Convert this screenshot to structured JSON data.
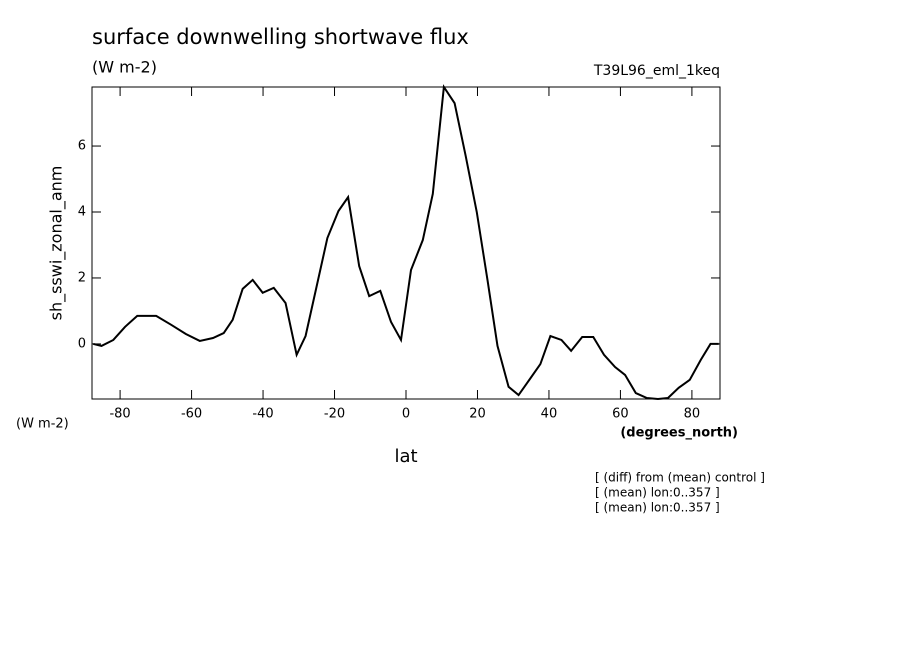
{
  "chart_data": {
    "type": "line",
    "title": "surface downwelling shortwave flux",
    "subtitle": "(W m-2)",
    "dataset": "T39L96_eml_1keq",
    "ylabel": "sh_sswi_zonal_anm",
    "yunits": "(W m-2)",
    "xunits": "(degrees_north)",
    "xlabel": "lat",
    "notes": [
      "[ (diff) from (mean) control ]",
      "[ (mean) lon:0..357 ]",
      "[ (mean) lon:0..357 ]"
    ],
    "x": [
      -87.5,
      -85.2,
      -81.9,
      -78.6,
      -75.2,
      -69.9,
      -65.7,
      -61.6,
      -57.7,
      -54.0,
      -51.0,
      -48.5,
      -45.7,
      -42.9,
      -40.1,
      -37.0,
      -33.7,
      -30.6,
      -28.1,
      -25.1,
      -22.0,
      -18.9,
      -16.2,
      -13.1,
      -10.3,
      -7.2,
      -4.2,
      -1.4,
      1.4,
      4.7,
      7.5,
      10.6,
      13.6,
      16.7,
      19.8,
      22.8,
      25.6,
      28.7,
      31.5,
      34.5,
      37.6,
      40.4,
      43.5,
      46.2,
      49.3,
      52.4,
      55.4,
      58.5,
      61.3,
      64.3,
      67.4,
      70.5,
      73.3,
      76.3,
      79.4,
      82.5,
      85.2,
      87.5
    ],
    "series": [
      {
        "name": "sh_sswi_zonal_anm",
        "color": "#000000",
        "values": [
          0,
          -0.06,
          0.12,
          0.52,
          0.85,
          0.85,
          0.58,
          0.3,
          0.09,
          0.18,
          0.33,
          0.73,
          1.67,
          1.94,
          1.55,
          1.7,
          1.24,
          -0.33,
          0.24,
          1.7,
          3.21,
          4.03,
          4.45,
          2.36,
          1.45,
          1.61,
          0.67,
          0.12,
          2.24,
          3.15,
          4.55,
          7.79,
          7.3,
          5.7,
          4.0,
          1.94,
          -0.06,
          -1.3,
          -1.55,
          -1.09,
          -0.61,
          0.24,
          0.12,
          -0.21,
          0.21,
          0.21,
          -0.33,
          -0.7,
          -0.94,
          -1.49,
          -1.64,
          -1.67,
          -1.64,
          -1.33,
          -1.09,
          -0.48,
          0.0,
          0.0
        ]
      }
    ],
    "xlim": [
      -87.86,
      87.86
    ],
    "xticks": [
      -80,
      -60,
      -40,
      -20,
      0,
      20,
      40,
      60,
      80
    ],
    "ylim": [
      -1.67,
      7.79
    ],
    "yticks": [
      0,
      2,
      4,
      6
    ],
    "grid": false
  }
}
